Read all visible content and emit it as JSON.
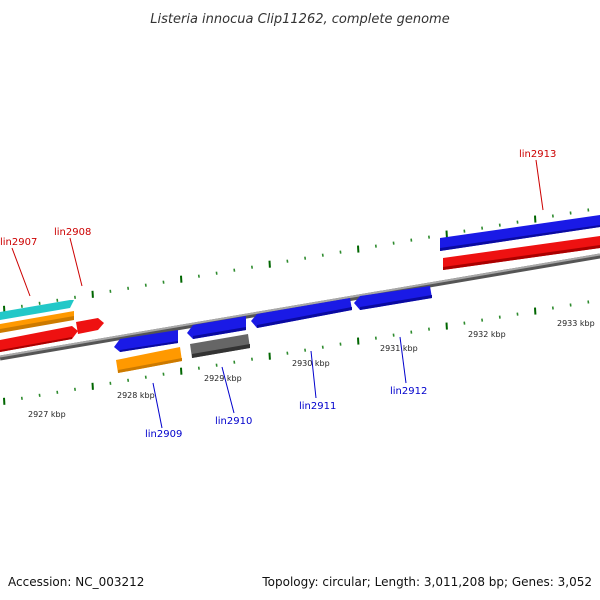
{
  "title": "Listeria innocua Clip11262, complete genome",
  "footer": {
    "accession": "Accession: NC_003212",
    "info": "Topology: circular; Length: 3,011,208 bp; Genes: 3,052"
  },
  "colors": {
    "forward_label": "#cc0000",
    "reverse_label": "#0000cc",
    "backbone": "#8c8c8c",
    "tick_major": "#006600",
    "tick_minor": "#2e8b2e",
    "gene_blue": "#1a1ae6",
    "gene_red": "#ee1111",
    "gene_orange": "#ff9900",
    "gene_cyan": "#22c8c8",
    "gene_gray": "#666666"
  },
  "ruler_labels": [
    "2927 kbp",
    "2928 kbp",
    "2929 kbp",
    "2930 kbp",
    "2931 kbp",
    "2932 kbp",
    "2933 kbp"
  ],
  "gene_labels": {
    "lin2907": "lin2907",
    "lin2908": "lin2908",
    "lin2913": "lin2913",
    "lin2909": "lin2909",
    "lin2910": "lin2910",
    "lin2911": "lin2911",
    "lin2912": "lin2912"
  }
}
